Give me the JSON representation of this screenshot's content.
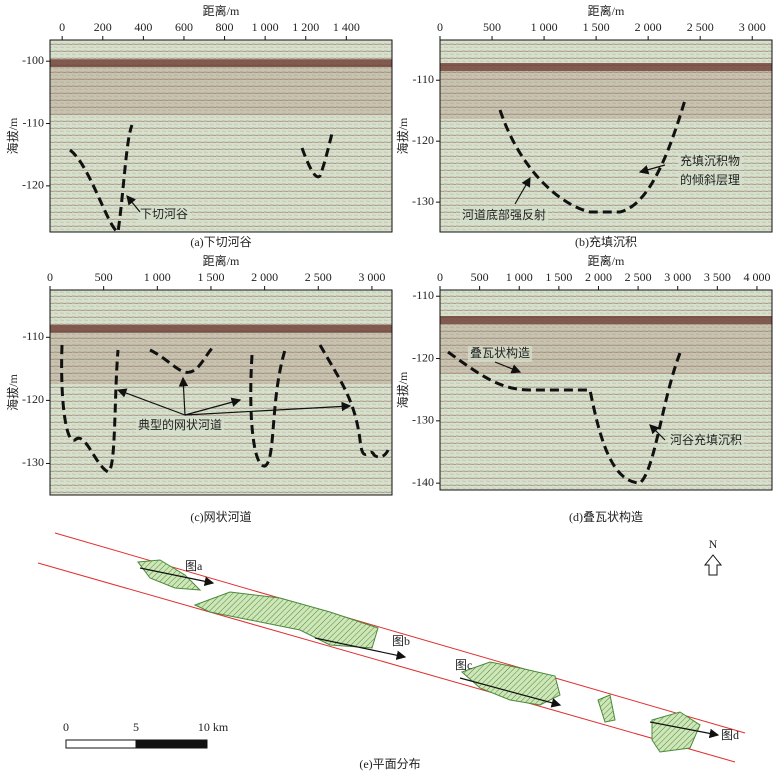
{
  "panels": [
    {
      "caption": "(a)下切河谷",
      "x_label": "距离/m",
      "y_label": "海拔/m",
      "xlim": [
        -60,
        1625
      ],
      "ylim": [
        -127.4,
        -96.6
      ],
      "xticks": [
        0,
        200,
        400,
        600,
        800,
        {
          "value": 1000,
          "label": "1 000"
        },
        {
          "value": 1200,
          "label": "1 200"
        },
        {
          "value": 1400,
          "label": "1 400"
        }
      ],
      "yticks": [
        -100,
        -110,
        -120
      ],
      "annotations": [
        "下切河谷"
      ]
    },
    {
      "caption": "(b)充填沉积",
      "x_label": "距离/m",
      "y_label": "海拔/m",
      "xlim": [
        0,
        3190
      ],
      "ylim": [
        -134.9,
        -103.4
      ],
      "xticks": [
        0,
        500,
        {
          "value": 1000,
          "label": "1 000"
        },
        {
          "value": 1500,
          "label": "1 500"
        },
        {
          "value": 2000,
          "label": "2 000"
        },
        {
          "value": 2500,
          "label": "2 500"
        },
        {
          "value": 3000,
          "label": "3 000"
        }
      ],
      "yticks": [
        -110,
        -120,
        -130
      ],
      "annotations": [
        "河道底部强反射",
        "充填沉积物",
        "的倾斜层理"
      ]
    },
    {
      "caption": "(c)网状河道",
      "x_label": "距离/m",
      "y_label": "海拔/m",
      "xlim": [
        0,
        3187
      ],
      "ylim": [
        -135,
        -102.5
      ],
      "xticks": [
        0,
        500,
        {
          "value": 1000,
          "label": "1 000"
        },
        {
          "value": 1500,
          "label": "1 500"
        },
        {
          "value": 2000,
          "label": "2 000"
        },
        {
          "value": 2500,
          "label": "2 500"
        },
        {
          "value": 3000,
          "label": "3 000"
        }
      ],
      "yticks": [
        -110,
        -120,
        -130
      ],
      "annotations": [
        "典型的网状河道"
      ]
    },
    {
      "caption": "(d)叠瓦状构造",
      "x_label": "距离/m",
      "y_label": "海拔/m",
      "xlim": [
        0,
        4190
      ],
      "ylim": [
        -141.1,
        -109
      ],
      "xticks": [
        0,
        500,
        {
          "value": 1000,
          "label": "1 000"
        },
        {
          "value": 1500,
          "label": "1 500"
        },
        {
          "value": 2000,
          "label": "2 000"
        },
        {
          "value": 2500,
          "label": "2 500"
        },
        {
          "value": 3000,
          "label": "3 000"
        },
        {
          "value": 3500,
          "label": "3 500"
        },
        {
          "value": 4000,
          "label": "4 000"
        }
      ],
      "yticks": [
        -110,
        -120,
        -130,
        -140
      ],
      "annotations": [
        "叠瓦状构造",
        "河谷充填沉积"
      ]
    }
  ],
  "map": {
    "caption": "(e)平面分布",
    "north": "N",
    "labels": [
      "图a",
      "图b",
      "图c",
      "图d"
    ],
    "scale": [
      "0",
      "5",
      "10 km"
    ]
  }
}
